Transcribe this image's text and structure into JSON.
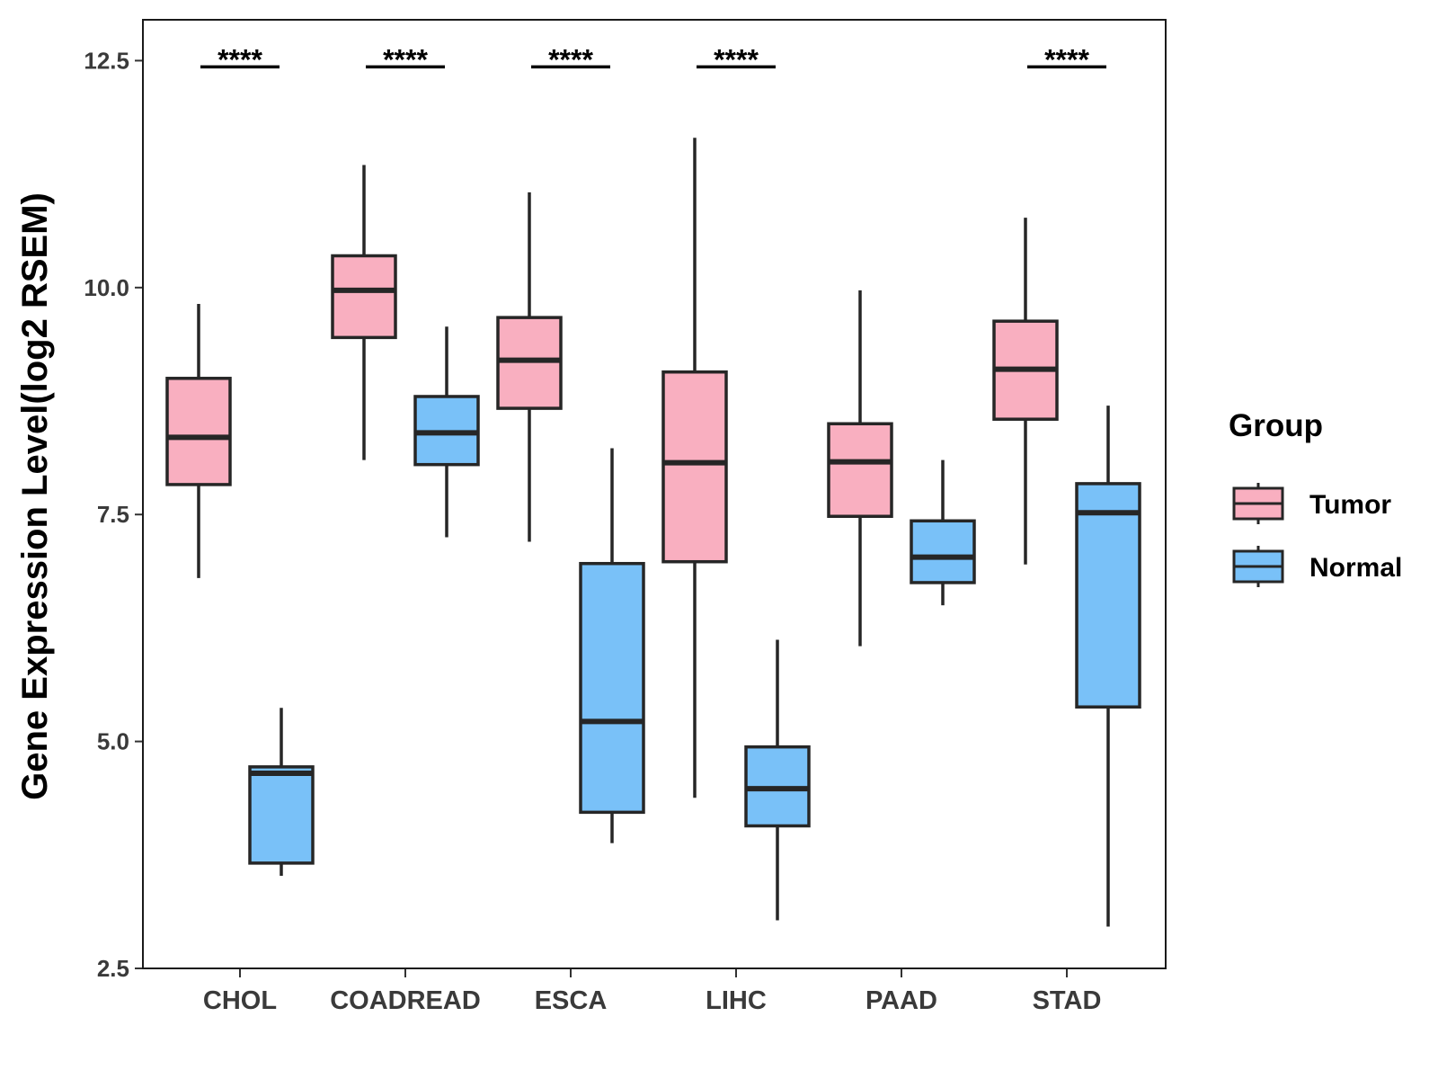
{
  "chart_data": {
    "type": "boxplot",
    "title": "",
    "xlabel": "",
    "ylabel": "Gene Expression Level(log2 RSEM)",
    "ylim": [
      2.5,
      12.95
    ],
    "yticks": [
      2.5,
      5.0,
      7.5,
      10.0,
      12.5
    ],
    "ytick_labels": [
      "2.5",
      "5.0",
      "7.5",
      "10.0",
      "12.5"
    ],
    "categories": [
      "CHOL",
      "COADREAD",
      "ESCA",
      "LIHC",
      "PAAD",
      "STAD"
    ],
    "legend": {
      "title": "Group",
      "position": "right",
      "entries": [
        {
          "name": "Tumor",
          "color": "#f9afc0"
        },
        {
          "name": "Normal",
          "color": "#79c1f8"
        }
      ]
    },
    "series": [
      {
        "name": "Tumor",
        "color": "#f9afc0",
        "boxes": [
          {
            "min": 6.8,
            "q1": 7.83,
            "median": 8.35,
            "q3": 9.0,
            "max": 9.82
          },
          {
            "min": 8.1,
            "q1": 9.45,
            "median": 9.97,
            "q3": 10.35,
            "max": 11.35
          },
          {
            "min": 7.2,
            "q1": 8.67,
            "median": 9.2,
            "q3": 9.67,
            "max": 11.05
          },
          {
            "min": 4.38,
            "q1": 6.98,
            "median": 8.07,
            "q3": 9.07,
            "max": 11.65
          },
          {
            "min": 6.05,
            "q1": 7.48,
            "median": 8.08,
            "q3": 8.5,
            "max": 9.97
          },
          {
            "min": 6.95,
            "q1": 8.55,
            "median": 9.1,
            "q3": 9.63,
            "max": 10.77
          }
        ]
      },
      {
        "name": "Normal",
        "color": "#79c1f8",
        "boxes": [
          {
            "min": 3.52,
            "q1": 3.66,
            "median": 4.65,
            "q3": 4.72,
            "max": 5.37
          },
          {
            "min": 7.25,
            "q1": 8.05,
            "median": 8.4,
            "q3": 8.8,
            "max": 9.57
          },
          {
            "min": 3.88,
            "q1": 4.22,
            "median": 5.22,
            "q3": 6.96,
            "max": 8.23
          },
          {
            "min": 3.03,
            "q1": 4.07,
            "median": 4.48,
            "q3": 4.94,
            "max": 6.12
          },
          {
            "min": 6.5,
            "q1": 6.75,
            "median": 7.03,
            "q3": 7.43,
            "max": 8.1
          },
          {
            "min": 2.96,
            "q1": 5.38,
            "median": 7.52,
            "q3": 7.84,
            "max": 8.7
          }
        ]
      }
    ],
    "significance": [
      {
        "category": "CHOL",
        "label": "****"
      },
      {
        "category": "COADREAD",
        "label": "****"
      },
      {
        "category": "ESCA",
        "label": "****"
      },
      {
        "category": "LIHC",
        "label": "****"
      },
      {
        "category": "PAAD",
        "label": ""
      },
      {
        "category": "STAD",
        "label": "****"
      }
    ]
  }
}
